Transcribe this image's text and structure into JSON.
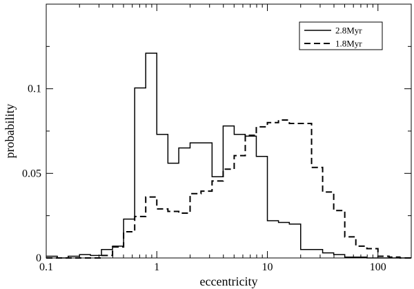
{
  "chart_data": {
    "type": "line",
    "title": "",
    "xlabel": "eccentricity",
    "ylabel": "probability",
    "xscale": "log",
    "xlim": [
      0.1,
      200
    ],
    "ylim": [
      0,
      0.15
    ],
    "x_ticks": [
      {
        "value": 0.1,
        "label": "0.1"
      },
      {
        "value": 1,
        "label": "1"
      },
      {
        "value": 10,
        "label": "10"
      },
      {
        "value": 100,
        "label": "100"
      }
    ],
    "y_ticks": [
      {
        "value": 0,
        "label": "0"
      },
      {
        "value": 0.05,
        "label": "0.05"
      },
      {
        "value": 0.1,
        "label": "0.1"
      }
    ],
    "grid": false,
    "legend_position": "top-right",
    "series": [
      {
        "name": "2.8Myr",
        "style": "solid",
        "color": "#000000",
        "bin_edges": [
          0.1,
          0.126,
          0.158,
          0.2,
          0.251,
          0.316,
          0.398,
          0.501,
          0.631,
          0.794,
          1.0,
          1.26,
          1.58,
          2.0,
          2.51,
          3.16,
          3.98,
          5.01,
          6.31,
          7.94,
          10.0,
          12.6,
          15.8,
          20.0,
          25.1,
          31.6,
          39.8,
          50.1,
          63.1,
          79.4,
          100.0,
          126.0,
          158.0,
          200.0
        ],
        "values": [
          0.001,
          0.0,
          0.001,
          0.002,
          0.0015,
          0.005,
          0.007,
          0.023,
          0.1005,
          0.121,
          0.073,
          0.056,
          0.065,
          0.068,
          0.068,
          0.048,
          0.078,
          0.073,
          0.072,
          0.06,
          0.022,
          0.021,
          0.02,
          0.005,
          0.005,
          0.003,
          0.002,
          0.0005,
          0.0005,
          0.0,
          0.0,
          0.0,
          0.0
        ]
      },
      {
        "name": "1.8Myr",
        "style": "dashed",
        "color": "#000000",
        "bin_edges": [
          0.1,
          0.126,
          0.158,
          0.2,
          0.251,
          0.316,
          0.398,
          0.501,
          0.631,
          0.794,
          1.0,
          1.26,
          1.58,
          2.0,
          2.51,
          3.16,
          3.98,
          5.01,
          6.31,
          7.94,
          10.0,
          12.6,
          15.8,
          20.0,
          25.1,
          31.6,
          39.8,
          50.1,
          63.1,
          79.4,
          100.0,
          126.0,
          158.0,
          200.0
        ],
        "values": [
          0.0,
          0.0,
          0.0,
          0.0,
          0.0,
          0.0015,
          0.0065,
          0.0155,
          0.0245,
          0.036,
          0.029,
          0.0275,
          0.0265,
          0.038,
          0.0395,
          0.0455,
          0.0525,
          0.0605,
          0.0725,
          0.0775,
          0.08,
          0.0815,
          0.0795,
          0.0795,
          0.0535,
          0.039,
          0.028,
          0.0125,
          0.007,
          0.0055,
          0.001,
          0.0005,
          0.0
        ]
      }
    ]
  }
}
